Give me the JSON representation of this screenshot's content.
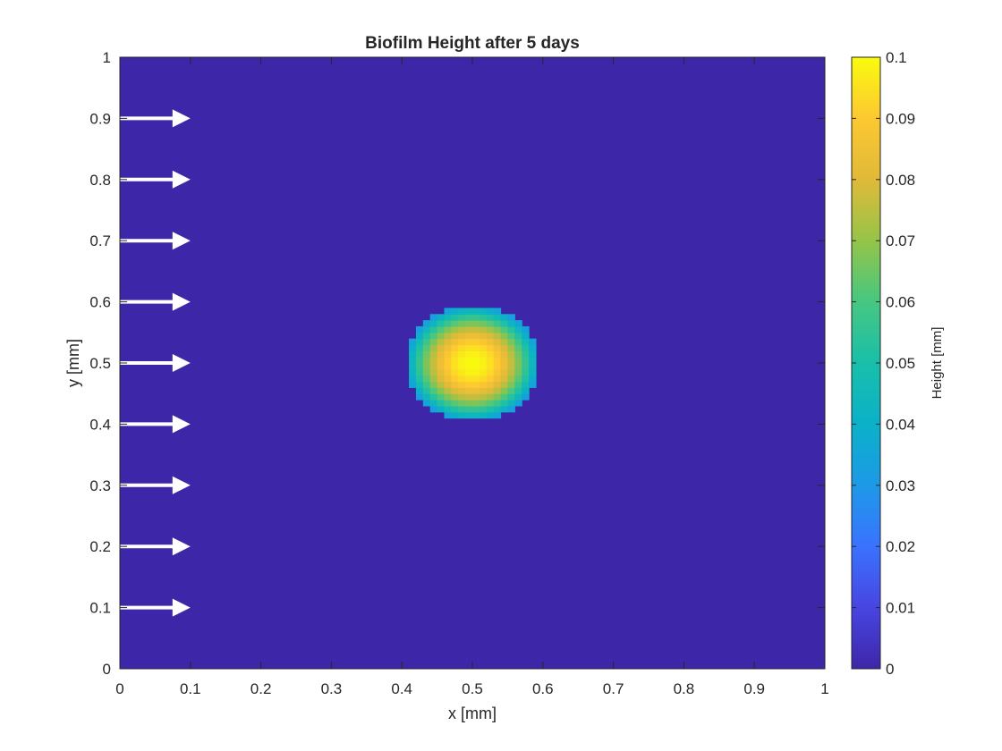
{
  "chart_data": {
    "type": "heatmap",
    "title": "Biofilm Height after 5 days",
    "xlabel": "x [mm]",
    "ylabel": "y [mm]",
    "xlim": [
      0,
      1
    ],
    "ylim": [
      0,
      1
    ],
    "x_ticks": [
      0,
      0.1,
      0.2,
      0.3,
      0.4,
      0.5,
      0.6,
      0.7,
      0.8,
      0.9,
      1
    ],
    "y_ticks": [
      0,
      0.1,
      0.2,
      0.3,
      0.4,
      0.5,
      0.6,
      0.7,
      0.8,
      0.9,
      1
    ],
    "x_tick_labels": [
      "0",
      "0.1",
      "0.2",
      "0.3",
      "0.4",
      "0.5",
      "0.6",
      "0.7",
      "0.8",
      "0.9",
      "1"
    ],
    "y_tick_labels": [
      "0",
      "0.1",
      "0.2",
      "0.3",
      "0.4",
      "0.5",
      "0.6",
      "0.7",
      "0.8",
      "0.9",
      "1"
    ],
    "grid": false,
    "colormap": "parula",
    "colorbar": {
      "label": "Height [mm]",
      "clim": [
        0,
        0.1
      ],
      "ticks": [
        0,
        0.01,
        0.02,
        0.03,
        0.04,
        0.05,
        0.06,
        0.07,
        0.08,
        0.09,
        0.1
      ],
      "tick_labels": [
        "0",
        "0.01",
        "0.02",
        "0.03",
        "0.04",
        "0.05",
        "0.06",
        "0.07",
        "0.08",
        "0.09",
        "0.1"
      ]
    },
    "grid_resolution": 100,
    "field": {
      "background": 0,
      "colony_center": [
        0.5,
        0.5
      ],
      "colony_radius_x": 0.095,
      "colony_radius_y": 0.095,
      "colony_peak_height": 0.1,
      "colony_edge_height": 0.03
    },
    "flow_arrows": {
      "direction": "+x",
      "x_start": 0,
      "x_end": 0.1,
      "y_positions": [
        0.1,
        0.2,
        0.3,
        0.4,
        0.5,
        0.6,
        0.7,
        0.8,
        0.9
      ],
      "color": "#ffffff"
    }
  }
}
